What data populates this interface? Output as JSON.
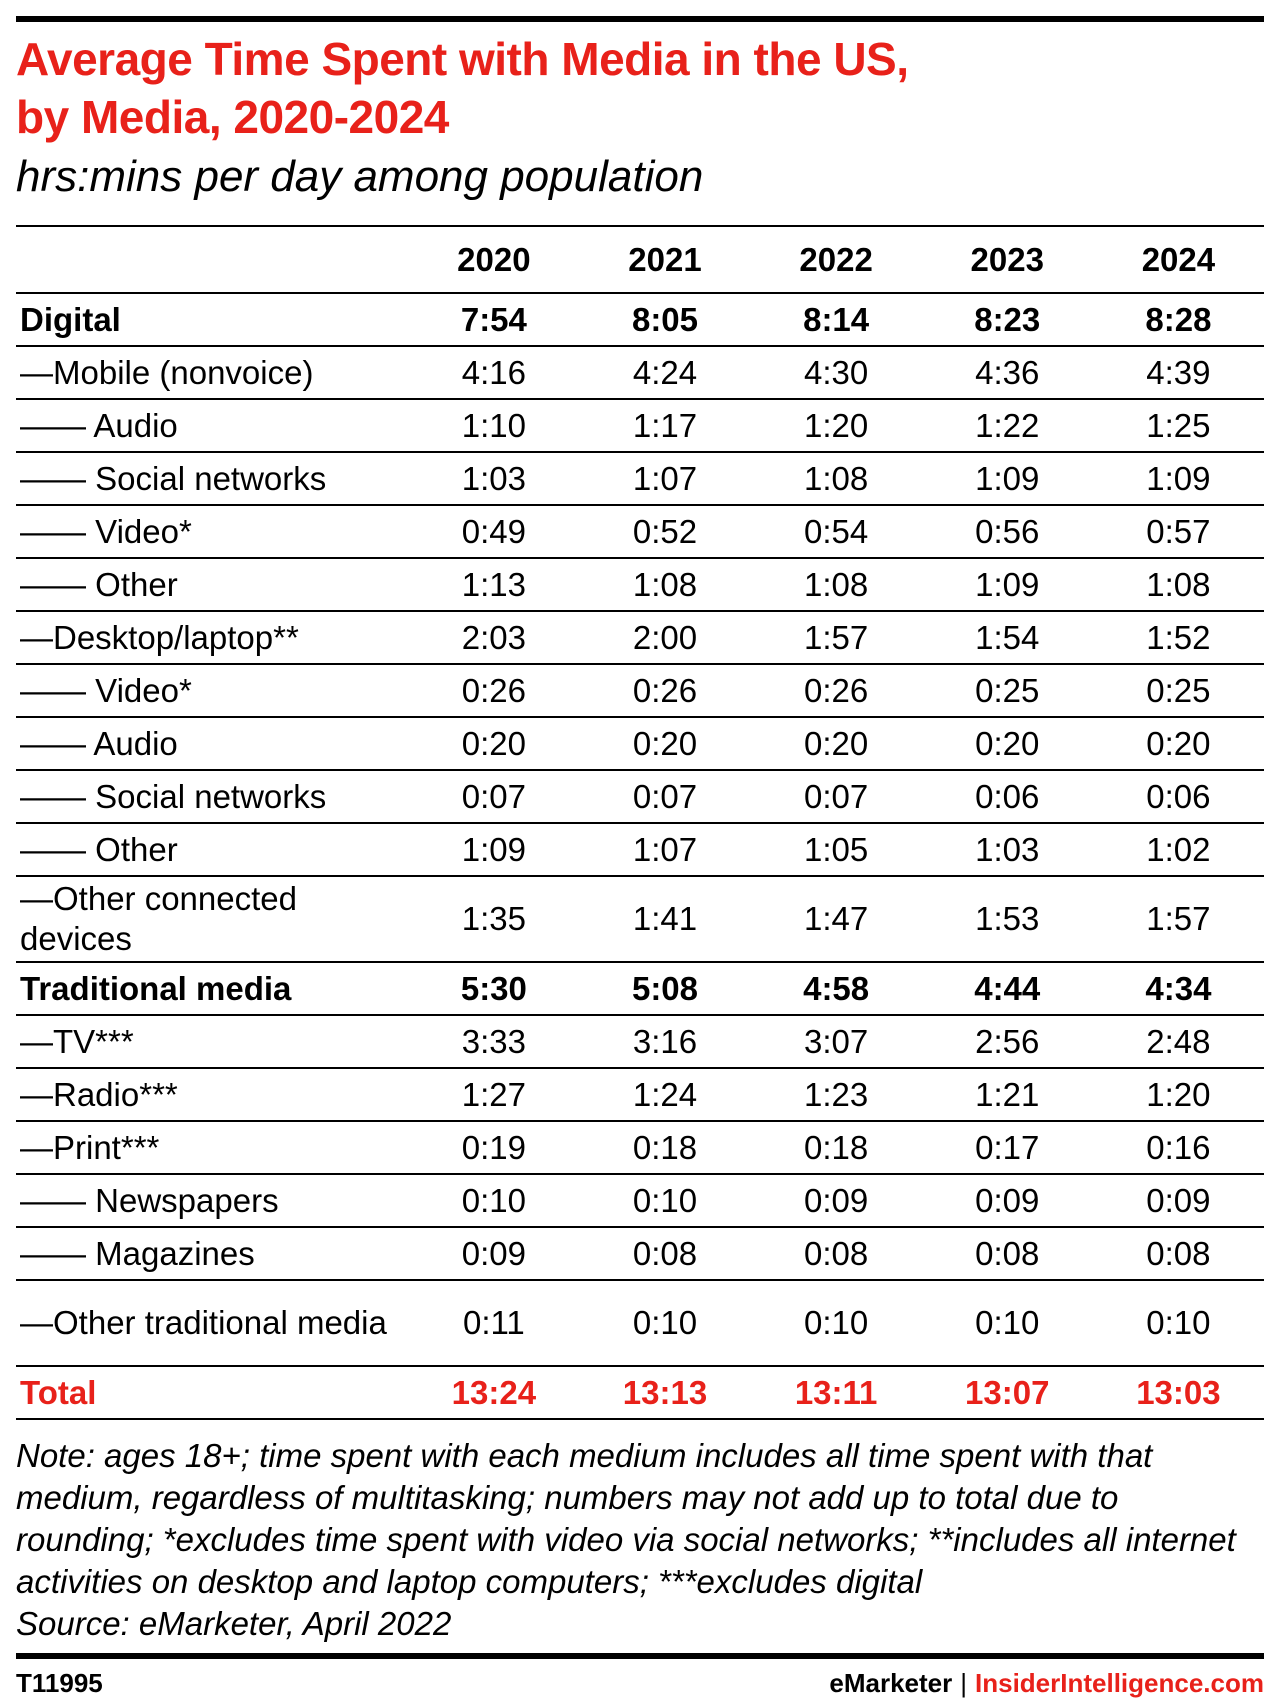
{
  "header": {
    "title_line1": "Average Time Spent with Media in the US,",
    "title_line2": "by Media, 2020-2024",
    "subtitle": "hrs:mins per day among population"
  },
  "colors": {
    "accent": "#e8211a",
    "text": "#000000",
    "background": "#ffffff"
  },
  "chart_data": {
    "type": "table",
    "title": "Average Time Spent with Media in the US, by Media, 2020-2024",
    "subtitle": "hrs:mins per day among population",
    "columns": [
      "2020",
      "2021",
      "2022",
      "2023",
      "2024"
    ],
    "rows": [
      {
        "label": "Digital",
        "style": "bold",
        "values": [
          "7:54",
          "8:05",
          "8:14",
          "8:23",
          "8:28"
        ]
      },
      {
        "label": "—Mobile (nonvoice)",
        "values": [
          "4:16",
          "4:24",
          "4:30",
          "4:36",
          "4:39"
        ]
      },
      {
        "label": "—— Audio",
        "values": [
          "1:10",
          "1:17",
          "1:20",
          "1:22",
          "1:25"
        ]
      },
      {
        "label": "—— Social networks",
        "values": [
          "1:03",
          "1:07",
          "1:08",
          "1:09",
          "1:09"
        ]
      },
      {
        "label": "—— Video*",
        "values": [
          "0:49",
          "0:52",
          "0:54",
          "0:56",
          "0:57"
        ]
      },
      {
        "label": "—— Other",
        "values": [
          "1:13",
          "1:08",
          "1:08",
          "1:09",
          "1:08"
        ]
      },
      {
        "label": "—Desktop/laptop**",
        "values": [
          "2:03",
          "2:00",
          "1:57",
          "1:54",
          "1:52"
        ]
      },
      {
        "label": "—— Video*",
        "values": [
          "0:26",
          "0:26",
          "0:26",
          "0:25",
          "0:25"
        ]
      },
      {
        "label": "—— Audio",
        "values": [
          "0:20",
          "0:20",
          "0:20",
          "0:20",
          "0:20"
        ]
      },
      {
        "label": "—— Social networks",
        "values": [
          "0:07",
          "0:07",
          "0:07",
          "0:06",
          "0:06"
        ]
      },
      {
        "label": "—— Other",
        "values": [
          "1:09",
          "1:07",
          "1:05",
          "1:03",
          "1:02"
        ]
      },
      {
        "label": "—Other connected devices",
        "style": "tall",
        "values": [
          "1:35",
          "1:41",
          "1:47",
          "1:53",
          "1:57"
        ]
      },
      {
        "label": "Traditional media",
        "style": "bold",
        "values": [
          "5:30",
          "5:08",
          "4:58",
          "4:44",
          "4:34"
        ]
      },
      {
        "label": "—TV***",
        "values": [
          "3:33",
          "3:16",
          "3:07",
          "2:56",
          "2:48"
        ]
      },
      {
        "label": "—Radio***",
        "values": [
          "1:27",
          "1:24",
          "1:23",
          "1:21",
          "1:20"
        ]
      },
      {
        "label": "—Print***",
        "values": [
          "0:19",
          "0:18",
          "0:18",
          "0:17",
          "0:16"
        ]
      },
      {
        "label": "—— Newspapers",
        "values": [
          "0:10",
          "0:10",
          "0:09",
          "0:09",
          "0:09"
        ]
      },
      {
        "label": "—— Magazines",
        "values": [
          "0:09",
          "0:08",
          "0:08",
          "0:08",
          "0:08"
        ]
      },
      {
        "label": "—Other traditional media",
        "style": "tall",
        "values": [
          "0:11",
          "0:10",
          "0:10",
          "0:10",
          "0:10"
        ]
      },
      {
        "label": "Total",
        "style": "total",
        "values": [
          "13:24",
          "13:13",
          "13:11",
          "13:07",
          "13:03"
        ]
      }
    ]
  },
  "note": {
    "text": "Note: ages 18+; time spent with each medium includes all time spent with that medium, regardless of multitasking; numbers may not add up to total due to rounding; *excludes time spent with video via social networks; **includes all internet activities on desktop and laptop computers; ***excludes digital",
    "source": "Source: eMarketer, April 2022"
  },
  "footer": {
    "id": "T11995",
    "brand_emarketer": "eMarketer",
    "brand_separator": "|",
    "brand_insider": "InsiderIntelligence.com"
  }
}
